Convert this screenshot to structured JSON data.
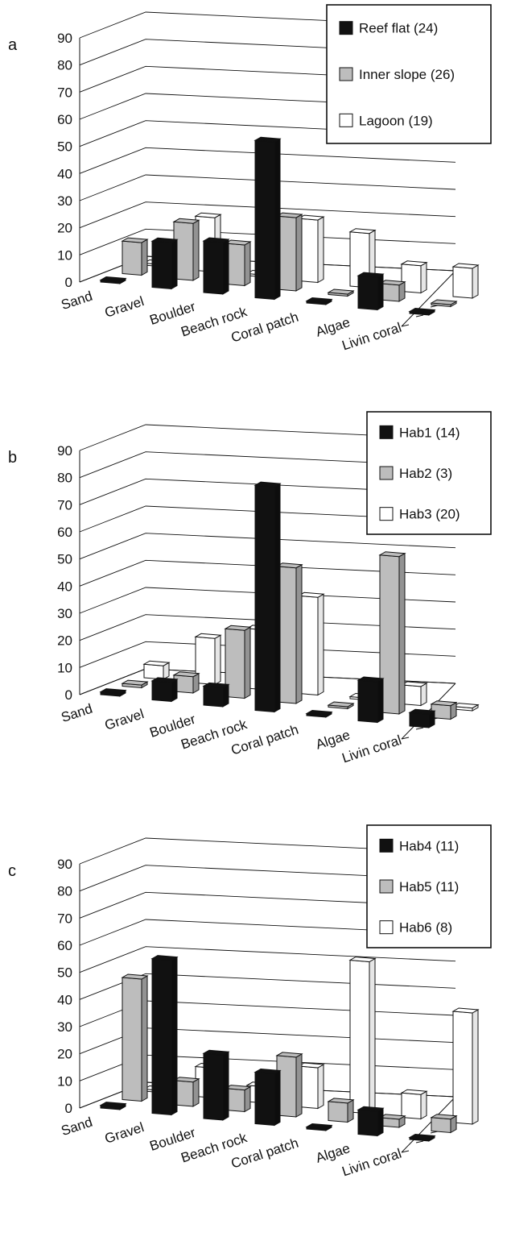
{
  "chart_data": [
    {
      "panel_label": "a",
      "type": "bar",
      "categories": [
        "Sand",
        "Gravel",
        "Boulder",
        "Beach rock",
        "Coral patch",
        "Algae",
        "Livin coral"
      ],
      "yticks": [
        "0",
        "10",
        "20",
        "30",
        "40",
        "50",
        "60",
        "70",
        "80",
        "90"
      ],
      "ylim": [
        0,
        90
      ],
      "legend_position": "top-right",
      "grid": true,
      "series": [
        {
          "name": "Reef flat (24)",
          "color": "#111111",
          "values": [
            0,
            17,
            19,
            58,
            0,
            12,
            0
          ]
        },
        {
          "name": "Inner slope (26)",
          "color": "#bdbdbd",
          "values": [
            12,
            21,
            15,
            27,
            0,
            6,
            0
          ]
        },
        {
          "name": "Lagoon (19)",
          "color": "#ffffff",
          "values": [
            0,
            20,
            0,
            23,
            20,
            10,
            11
          ]
        }
      ]
    },
    {
      "panel_label": "b",
      "type": "bar",
      "categories": [
        "Sand",
        "Gravel",
        "Boulder",
        "Beach rock",
        "Coral patch",
        "Algae",
        "Livin coral"
      ],
      "yticks": [
        "0",
        "10",
        "20",
        "30",
        "40",
        "50",
        "60",
        "70",
        "80",
        "90"
      ],
      "ylim": [
        0,
        90
      ],
      "legend_position": "top-right",
      "grid": true,
      "series": [
        {
          "name": "Hab1 (14)",
          "color": "#111111",
          "values": [
            1,
            7,
            7,
            83,
            0,
            15,
            5
          ]
        },
        {
          "name": "Hab2 (3)",
          "color": "#bdbdbd",
          "values": [
            1,
            6,
            25,
            50,
            0,
            58,
            5
          ]
        },
        {
          "name": "Hab3 (20)",
          "color": "#ffffff",
          "values": [
            5,
            17,
            22,
            36,
            0,
            7,
            1
          ]
        }
      ]
    },
    {
      "panel_label": "c",
      "type": "bar",
      "categories": [
        "Sand",
        "Gravel",
        "Boulder",
        "Beach rock",
        "Coral patch",
        "Algae",
        "Livin coral"
      ],
      "yticks": [
        "0",
        "10",
        "20",
        "30",
        "40",
        "50",
        "60",
        "70",
        "80",
        "90"
      ],
      "ylim": [
        0,
        90
      ],
      "legend_position": "top-right",
      "grid": true,
      "series": [
        {
          "name": "Hab4 (11)",
          "color": "#111111",
          "values": [
            1,
            57,
            24,
            19,
            0,
            9,
            0
          ]
        },
        {
          "name": "Hab5 (11)",
          "color": "#bdbdbd",
          "values": [
            45,
            9,
            8,
            22,
            7,
            3,
            5
          ]
        },
        {
          "name": "Hab6 (8)",
          "color": "#ffffff",
          "values": [
            0,
            11,
            6,
            15,
            56,
            9,
            41
          ]
        }
      ]
    }
  ]
}
